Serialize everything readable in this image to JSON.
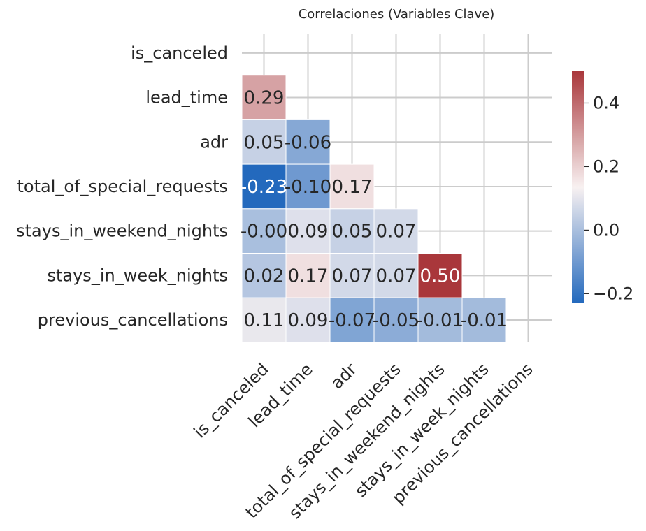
{
  "chart_data": {
    "type": "heatmap",
    "title": "Correlaciones (Variables Clave)",
    "variables": [
      "is_canceled",
      "lead_time",
      "adr",
      "total_of_special_requests",
      "stays_in_weekend_nights",
      "stays_in_week_nights",
      "previous_cancellations"
    ],
    "mask": "upper-triangle-including-diagonal",
    "cells": [
      {
        "row": 1,
        "col": 0,
        "value": 0.29,
        "label": "0.29"
      },
      {
        "row": 2,
        "col": 0,
        "value": 0.05,
        "label": "0.05"
      },
      {
        "row": 2,
        "col": 1,
        "value": -0.06,
        "label": "-0.06"
      },
      {
        "row": 3,
        "col": 0,
        "value": -0.23,
        "label": "-0.23"
      },
      {
        "row": 3,
        "col": 1,
        "value": -0.1,
        "label": "-0.10"
      },
      {
        "row": 3,
        "col": 2,
        "value": 0.17,
        "label": "0.17"
      },
      {
        "row": 4,
        "col": 0,
        "value": -0.0,
        "label": "-0.00"
      },
      {
        "row": 4,
        "col": 1,
        "value": 0.09,
        "label": "0.09"
      },
      {
        "row": 4,
        "col": 2,
        "value": 0.05,
        "label": "0.05"
      },
      {
        "row": 4,
        "col": 3,
        "value": 0.07,
        "label": "0.07"
      },
      {
        "row": 5,
        "col": 0,
        "value": 0.02,
        "label": "0.02"
      },
      {
        "row": 5,
        "col": 1,
        "value": 0.17,
        "label": "0.17"
      },
      {
        "row": 5,
        "col": 2,
        "value": 0.07,
        "label": "0.07"
      },
      {
        "row": 5,
        "col": 3,
        "value": 0.07,
        "label": "0.07"
      },
      {
        "row": 5,
        "col": 4,
        "value": 0.5,
        "label": "0.50"
      },
      {
        "row": 6,
        "col": 0,
        "value": 0.11,
        "label": "0.11"
      },
      {
        "row": 6,
        "col": 1,
        "value": 0.09,
        "label": "0.09"
      },
      {
        "row": 6,
        "col": 2,
        "value": -0.07,
        "label": "-0.07"
      },
      {
        "row": 6,
        "col": 3,
        "value": -0.05,
        "label": "-0.05"
      },
      {
        "row": 6,
        "col": 4,
        "value": -0.01,
        "label": "-0.01"
      },
      {
        "row": 6,
        "col": 5,
        "value": -0.01,
        "label": "-0.01"
      }
    ],
    "colormap": "vlag",
    "vmin": -0.23,
    "vmax": 0.5,
    "colorbar": {
      "ticks": [
        -0.2,
        0.0,
        0.2,
        0.4
      ],
      "tick_labels": [
        "−0.2",
        "0.0",
        "0.2",
        "0.4"
      ]
    },
    "colors": {
      "min": "#2369bd",
      "mid": "#f8f1f1",
      "max": "#a9373b"
    },
    "grid": true
  }
}
